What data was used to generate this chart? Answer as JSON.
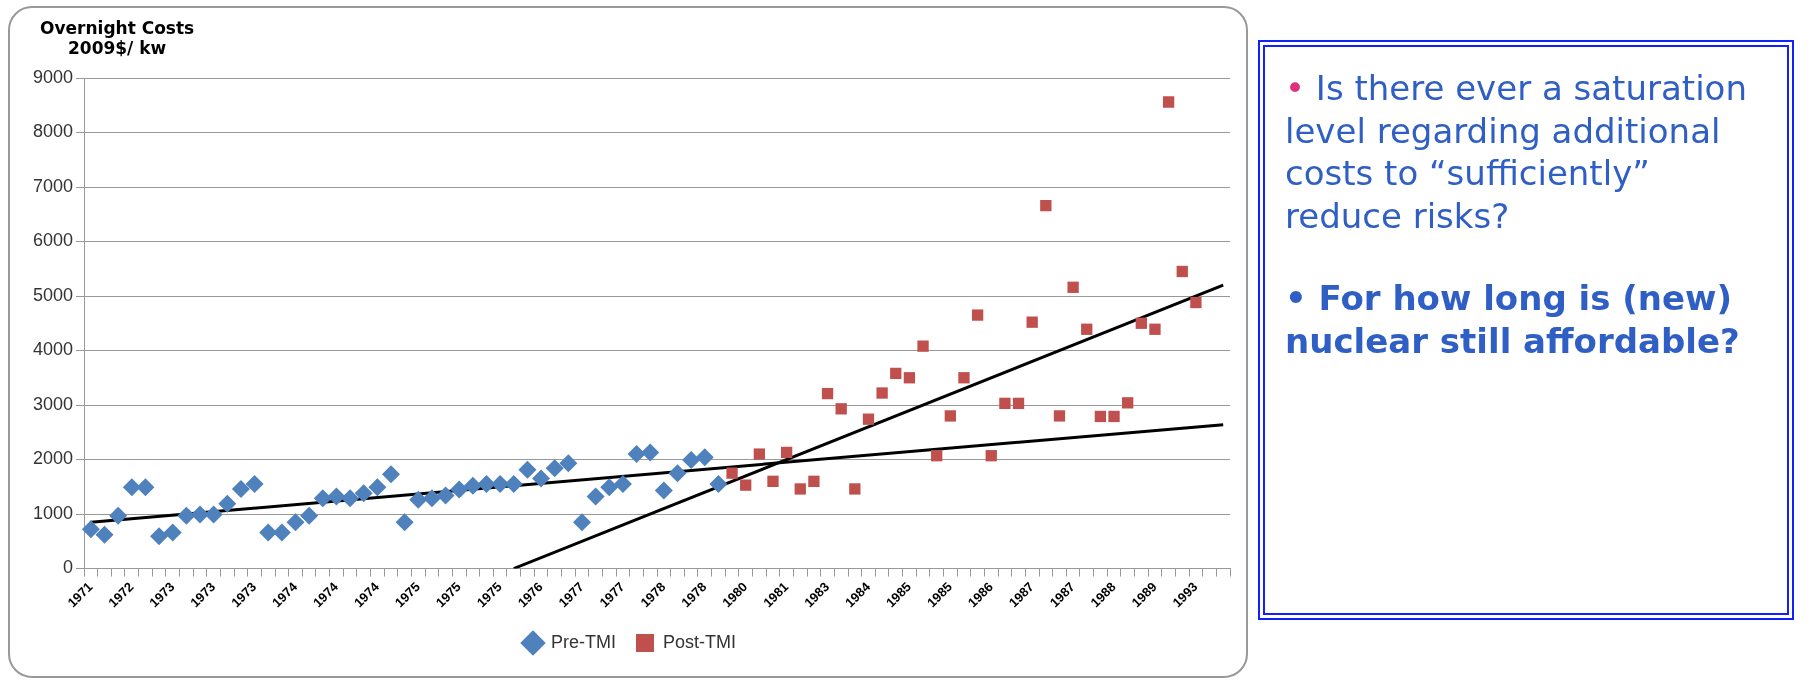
{
  "chart_data": {
    "type": "scatter",
    "ylabel": "Overnight Costs\n2009$/ kw",
    "categories": [
      "1971",
      null,
      null,
      "1972",
      null,
      null,
      "1973",
      null,
      null,
      "1973",
      null,
      null,
      "1973",
      null,
      null,
      "1974",
      null,
      null,
      "1974",
      null,
      null,
      "1974",
      null,
      null,
      "1975",
      null,
      null,
      "1975",
      null,
      null,
      "1975",
      null,
      null,
      "1976",
      null,
      null,
      "1977",
      null,
      null,
      "1977",
      null,
      null,
      "1978",
      null,
      null,
      "1978",
      null,
      null,
      "1980",
      null,
      null,
      "1981",
      null,
      null,
      "1983",
      null,
      null,
      "1984",
      null,
      null,
      "1985",
      null,
      null,
      "1985",
      null,
      null,
      "1986",
      null,
      null,
      "1987",
      null,
      null,
      "1987",
      null,
      null,
      "1988",
      null,
      null,
      "1989",
      null,
      null,
      "1993",
      null,
      null
    ],
    "series": [
      {
        "name": "Pre-TMI",
        "marker": "diamond",
        "color": "#4f81bd",
        "values": [
          720,
          620,
          970,
          1490,
          1490,
          590,
          660,
          970,
          990,
          990,
          1190,
          1460,
          1550,
          660,
          660,
          850,
          970,
          1290,
          1320,
          1290,
          1380,
          1490,
          1730,
          850,
          1260,
          1290,
          1340,
          1450,
          1520,
          1550,
          1550,
          1550,
          1810,
          1650,
          1840,
          1930,
          850,
          1320,
          1490,
          1550,
          2100,
          2130,
          1430,
          1750,
          1990,
          2040,
          1550,
          null,
          null,
          null,
          null,
          null,
          null,
          null,
          null,
          null,
          null,
          null,
          null,
          null,
          null,
          null,
          null,
          null,
          null,
          null,
          null,
          null,
          null,
          null,
          null,
          null,
          null,
          null,
          null,
          null,
          null,
          null,
          null,
          null,
          null,
          null,
          null,
          null
        ]
      },
      {
        "name": "Post-TMI",
        "marker": "square",
        "color": "#c0504d",
        "values": [
          null,
          null,
          null,
          null,
          null,
          null,
          null,
          null,
          null,
          null,
          null,
          null,
          null,
          null,
          null,
          null,
          null,
          null,
          null,
          null,
          null,
          null,
          null,
          null,
          null,
          null,
          null,
          null,
          null,
          null,
          null,
          null,
          null,
          null,
          null,
          null,
          null,
          null,
          null,
          null,
          null,
          null,
          null,
          null,
          null,
          null,
          null,
          1750,
          1530,
          2100,
          1600,
          2130,
          1460,
          1600,
          3210,
          2930,
          1460,
          2740,
          3220,
          3580,
          3500,
          4080,
          2070,
          2800,
          3500,
          4650,
          2070,
          3030,
          3030,
          4520,
          6660,
          2800,
          5160,
          4390,
          2790,
          2790,
          3040,
          4500,
          4390,
          8560,
          5450,
          4880,
          null,
          null
        ]
      },
      {
        "type": "line",
        "marker": "none",
        "color": "#000000",
        "values": [
          850,
          null,
          null,
          null,
          null,
          null,
          null,
          null,
          null,
          null,
          null,
          null,
          null,
          null,
          null,
          null,
          null,
          null,
          null,
          null,
          null,
          null,
          null,
          null,
          null,
          null,
          null,
          null,
          null,
          null,
          null,
          null,
          null,
          null,
          null,
          null,
          null,
          null,
          null,
          null,
          null,
          null,
          null,
          null,
          null,
          null,
          null,
          null,
          null,
          null,
          null,
          null,
          null,
          null,
          null,
          null,
          null,
          null,
          null,
          null,
          null,
          null,
          null,
          null,
          null,
          null,
          null,
          null,
          null,
          null,
          null,
          null,
          null,
          null,
          null,
          null,
          null,
          null,
          null,
          null,
          null,
          null,
          null,
          2640
        ]
      },
      {
        "type": "line",
        "marker": "none",
        "color": "#000000",
        "values": [
          null,
          null,
          null,
          null,
          null,
          null,
          null,
          null,
          null,
          null,
          null,
          null,
          null,
          null,
          null,
          null,
          null,
          null,
          null,
          null,
          null,
          null,
          null,
          null,
          null,
          null,
          null,
          null,
          null,
          null,
          null,
          0,
          null,
          null,
          null,
          null,
          null,
          null,
          null,
          null,
          null,
          null,
          null,
          null,
          null,
          null,
          null,
          null,
          null,
          null,
          null,
          null,
          null,
          null,
          null,
          null,
          null,
          null,
          null,
          null,
          null,
          null,
          null,
          null,
          null,
          null,
          null,
          null,
          null,
          null,
          null,
          null,
          null,
          null,
          null,
          null,
          null,
          null,
          null,
          null,
          null,
          null,
          null,
          5200
        ]
      }
    ],
    "ylim": [
      0,
      9000
    ],
    "yticks": [
      0,
      1000,
      2000,
      3000,
      4000,
      5000,
      6000,
      7000,
      8000,
      9000
    ],
    "grid": "y",
    "legend": "bottom",
    "annotations": [
      "• Is there ever a saturation level regarding additional costs to “sufficiently” reduce risks?",
      "• For how long is (new) nuclear still affordable?"
    ]
  }
}
